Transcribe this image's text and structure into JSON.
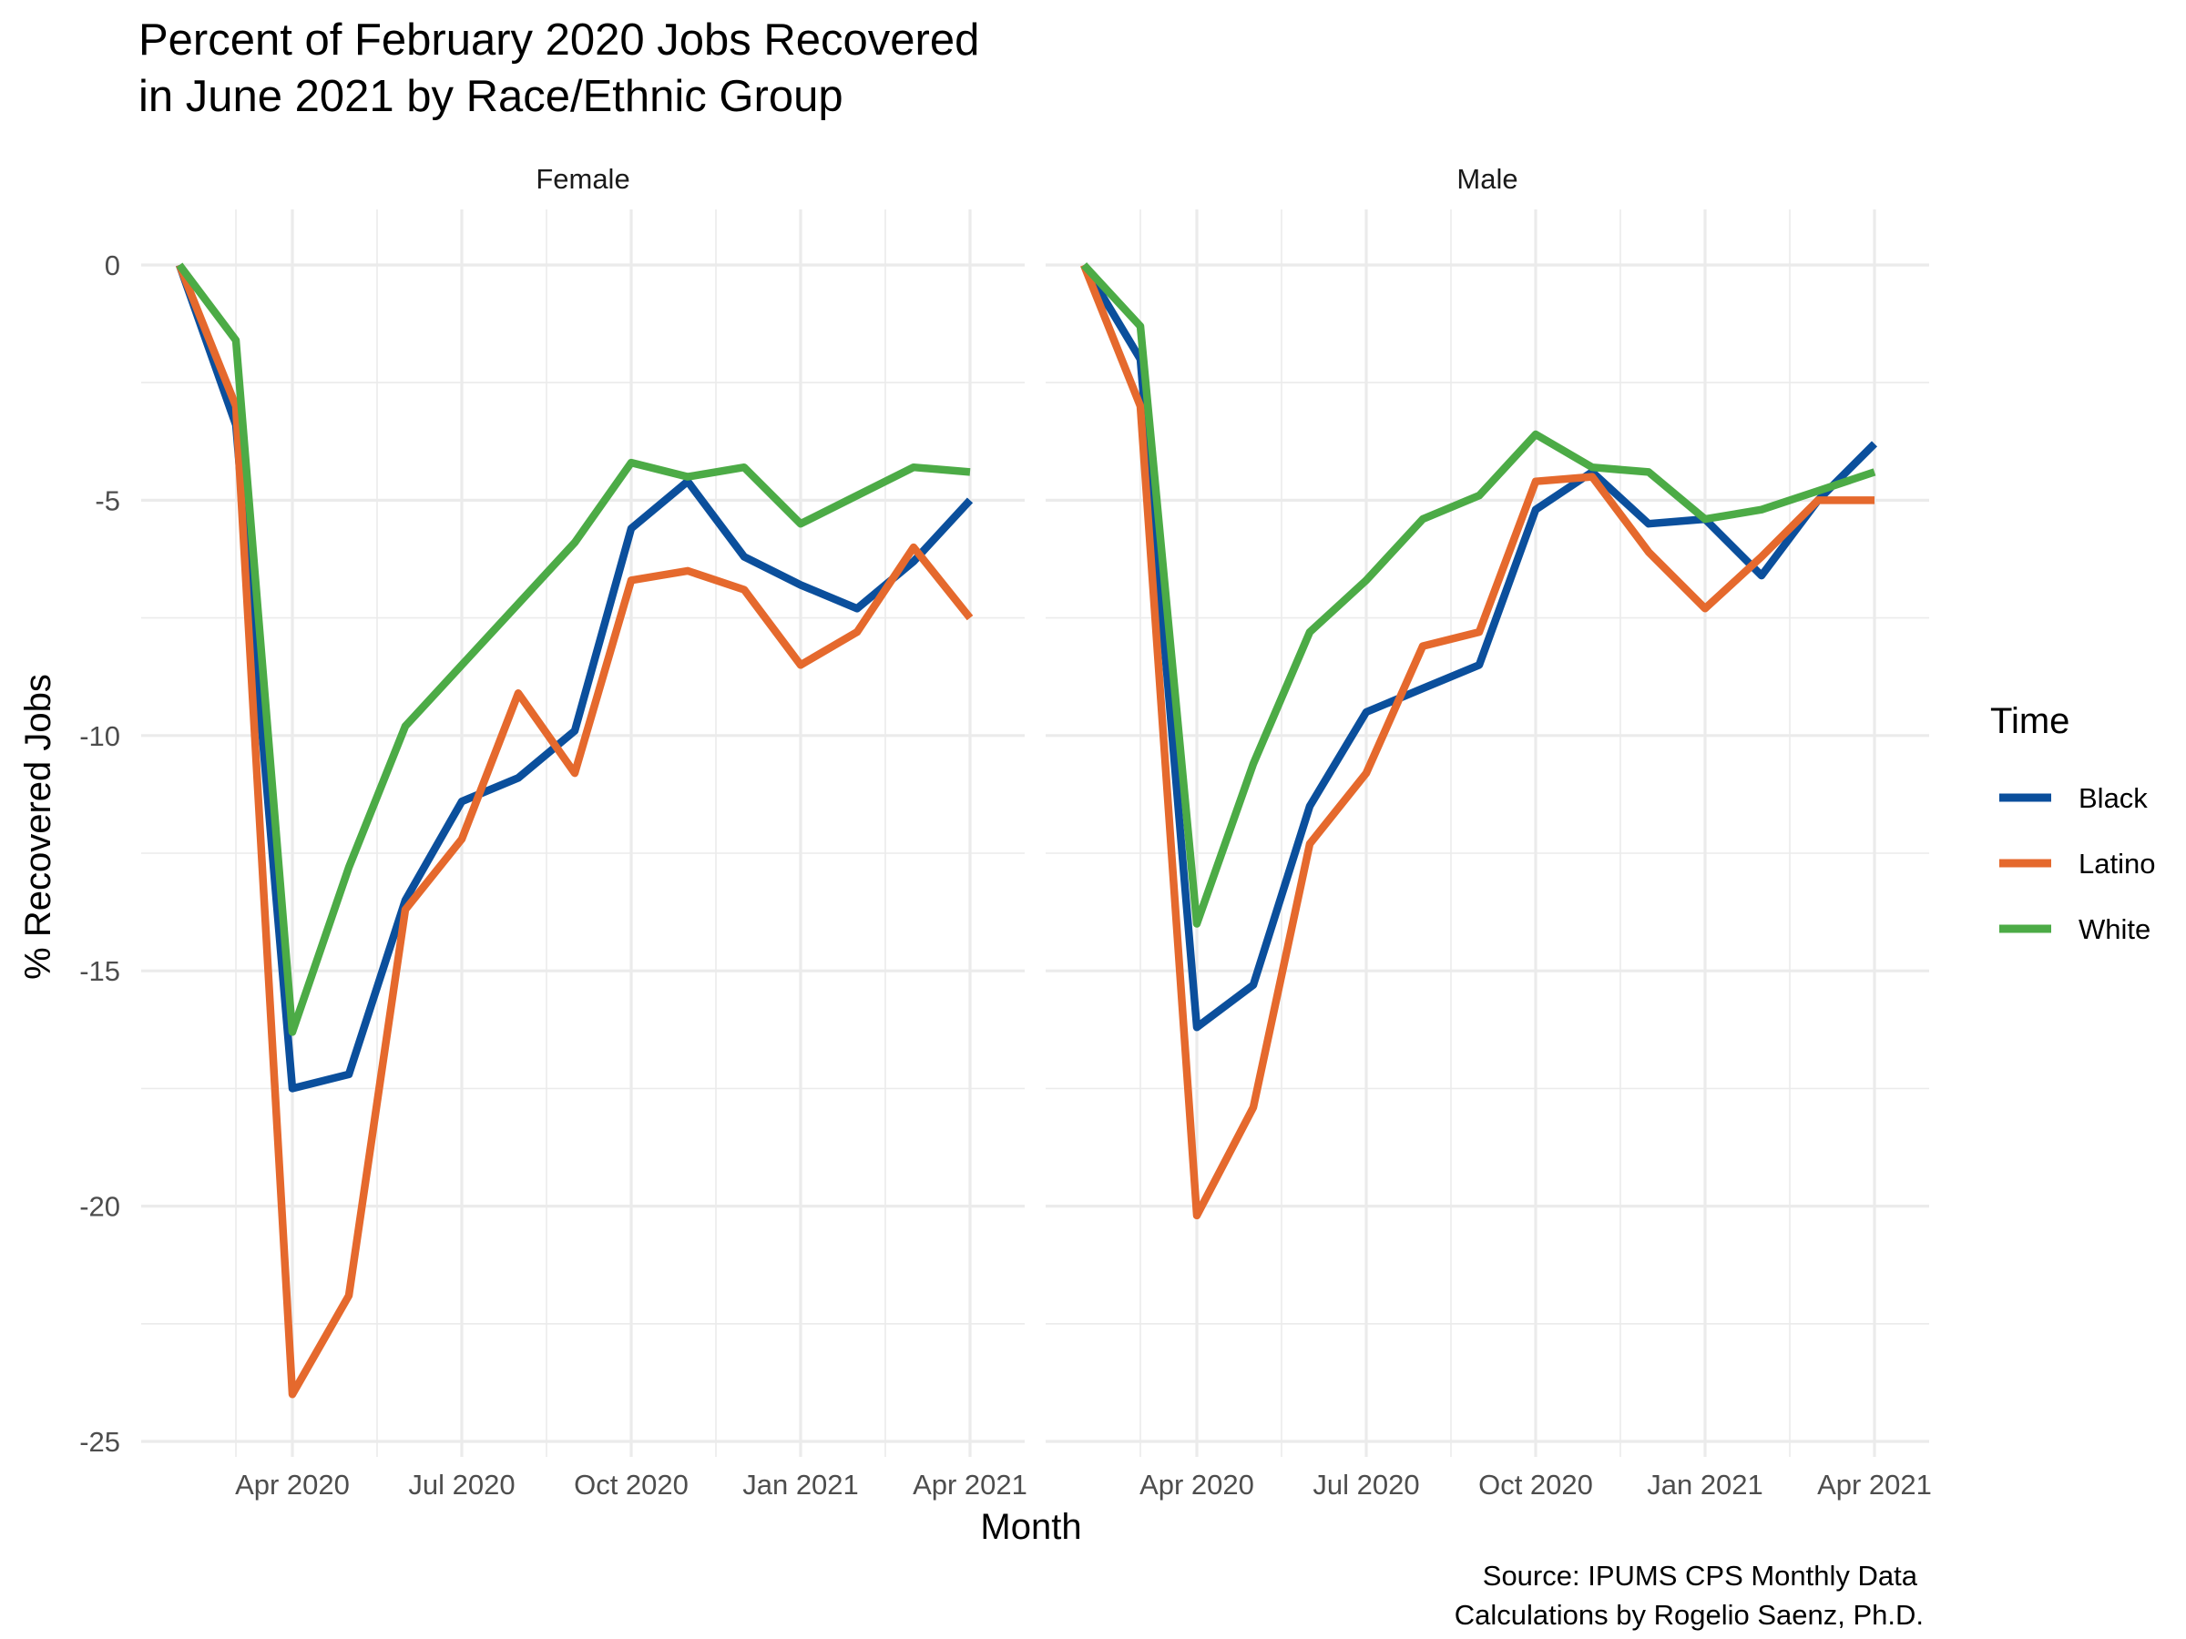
{
  "chart_data": {
    "type": "line",
    "title_lines": [
      "Percent of February 2020 Jobs Recovered",
      "in June 2021 by Race/Ethnic Group"
    ],
    "xlabel": "Month",
    "ylabel": "% Recovered Jobs",
    "x_tick_labels": [
      "Apr 2020",
      "Jul 2020",
      "Oct 2020",
      "Jan 2021",
      "Apr 2021"
    ],
    "y_ticks": [
      0,
      -5,
      -10,
      -15,
      -20,
      -25
    ],
    "y_tick_labels": [
      "0",
      "-5",
      "-10",
      "-15",
      "-20",
      "-25"
    ],
    "ylim": [
      -25,
      1
    ],
    "xlim": [
      "2020-02",
      "2021-04"
    ],
    "grid": true,
    "legend": {
      "title": "Time",
      "position": "right",
      "entries": [
        "Black",
        "Latino",
        "White"
      ]
    },
    "caption_lines": [
      "Source: IPUMS CPS Monthly Data",
      "Calculations by Rogelio Saenz, Ph.D."
    ],
    "colors": {
      "Black": "#0b4f9c",
      "Latino": "#e5692d",
      "White": "#4cab46"
    },
    "x": [
      "2020-02",
      "2020-03",
      "2020-04",
      "2020-05",
      "2020-06",
      "2020-07",
      "2020-08",
      "2020-09",
      "2020-10",
      "2020-11",
      "2020-12",
      "2021-01",
      "2021-02",
      "2021-03",
      "2021-04"
    ],
    "panels": [
      {
        "strip": "Female",
        "series": [
          {
            "name": "Black",
            "values": [
              0,
              -3.4,
              -17.5,
              -17.2,
              -13.5,
              -11.4,
              -10.9,
              -9.9,
              -5.6,
              -4.6,
              -6.2,
              -6.8,
              -7.3,
              -6.3,
              -5.0
            ]
          },
          {
            "name": "Latino",
            "values": [
              0,
              -3.0,
              -24.0,
              -21.9,
              -13.7,
              -12.2,
              -9.1,
              -10.8,
              -6.7,
              -6.5,
              -6.9,
              -8.5,
              -7.8,
              -6.0,
              -7.5
            ]
          },
          {
            "name": "White",
            "values": [
              0,
              -1.6,
              -16.3,
              -12.8,
              -9.8,
              -8.5,
              -7.2,
              -5.9,
              -4.2,
              -4.5,
              -4.3,
              -5.5,
              -4.9,
              -4.3,
              -4.4
            ]
          }
        ]
      },
      {
        "strip": "Male",
        "series": [
          {
            "name": "Black",
            "values": [
              0,
              -2.0,
              -16.2,
              -15.3,
              -11.5,
              -9.5,
              -9.0,
              -8.5,
              -5.2,
              -4.4,
              -5.5,
              -5.4,
              -6.6,
              -5.0,
              -3.8
            ]
          },
          {
            "name": "Latino",
            "values": [
              0,
              -3.0,
              -20.2,
              -17.9,
              -12.3,
              -10.8,
              -8.1,
              -7.8,
              -4.6,
              -4.5,
              -6.1,
              -7.3,
              -6.2,
              -5.0,
              -5.0
            ]
          },
          {
            "name": "White",
            "values": [
              0,
              -1.3,
              -14.0,
              -10.6,
              -7.8,
              -6.7,
              -5.4,
              -4.9,
              -3.6,
              -4.3,
              -4.4,
              -5.4,
              -5.2,
              -4.8,
              -4.4
            ]
          }
        ]
      }
    ]
  }
}
